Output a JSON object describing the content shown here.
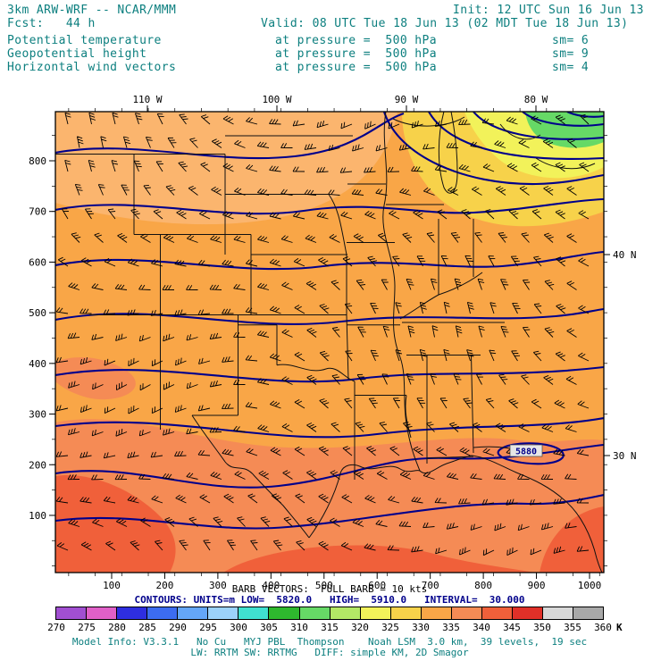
{
  "title_block": {
    "model_title": "3km ARW-WRF -- NCAR/MMM",
    "init": "Init: 12 UTC Sun 16 Jun 13",
    "fcst_line": "Fcst:   44 h",
    "valid_line": "Valid: 08 UTC Tue 18 Jun 13 (02 MDT Tue 18 Jun 13)",
    "fields": [
      {
        "name": "Potential temperature",
        "level": "at pressure =  500 hPa",
        "smoothing": "sm= 6"
      },
      {
        "name": "Geopotential height",
        "level": "at pressure =  500 hPa",
        "smoothing": "sm= 9"
      },
      {
        "name": "Horizontal wind vectors",
        "level": "at pressure =  500 hPa",
        "smoothing": "sm= 4"
      }
    ]
  },
  "chart_data": {
    "type": "heatmap",
    "title": "500 hPa potential temperature (shaded, K), geopotential height (contours, m), horizontal wind barbs",
    "x_axis": {
      "bottom_tick_labels": [
        "100",
        "200",
        "300",
        "400",
        "500",
        "600",
        "700",
        "800",
        "900",
        "1000"
      ],
      "top_tick_labels": [
        "110 W",
        "100 W",
        "90 W",
        "80 W"
      ]
    },
    "y_axis": {
      "left_tick_labels": [
        "800",
        "700",
        "600",
        "500",
        "400",
        "300",
        "200",
        "100"
      ],
      "right_tick_labels": [
        "40 N",
        "30 N"
      ]
    },
    "contours": {
      "field": "Geopotential height",
      "units": "m",
      "low": 5820.0,
      "high": 5910.0,
      "interval": 30.0,
      "levels": [
        5820,
        5850,
        5880,
        5910
      ],
      "labeled_value": "5880",
      "line_color": "#00008b"
    },
    "vectors": {
      "field": "Horizontal wind vectors",
      "full_barb_kts": 10
    },
    "colorbar": {
      "units": "K",
      "tick_labels": [
        "270",
        "275",
        "280",
        "285",
        "290",
        "295",
        "300",
        "305",
        "310",
        "315",
        "320",
        "325",
        "330",
        "335",
        "340",
        "345",
        "350",
        "355",
        "360"
      ],
      "cell_colors": [
        "#a14fd1",
        "#e060c8",
        "#2e2ee0",
        "#3c6cf0",
        "#64a6f8",
        "#9cd2fa",
        "#40e0d0",
        "#2eb82e",
        "#66d966",
        "#b3e866",
        "#f2f25a",
        "#f7d24a",
        "#f9a647",
        "#f58b55",
        "#f0603a",
        "#e03028",
        "#d8d8d8",
        "#a8a8a8"
      ]
    }
  },
  "footer": {
    "barb_line": "BARB VECTORS:  FULL BARB = 10 kts",
    "contour_line": "CONTOURS: UNITS=m LOW=  5820.0   HIGH=  5910.0   INTERVAL=  30.000",
    "model_info_line1": "Model Info: V3.3.1   No Cu   MYJ PBL  Thompson    Noah LSM  3.0 km,  39 levels,  19 sec",
    "model_info_line2": "LW: RRTM SW: RRTMG   DIFF: simple KM, 2D Smagor"
  },
  "colors": {
    "header_text": "#0c7f7f",
    "contour_text": "#00008b",
    "fill_base": "#f9a647"
  }
}
